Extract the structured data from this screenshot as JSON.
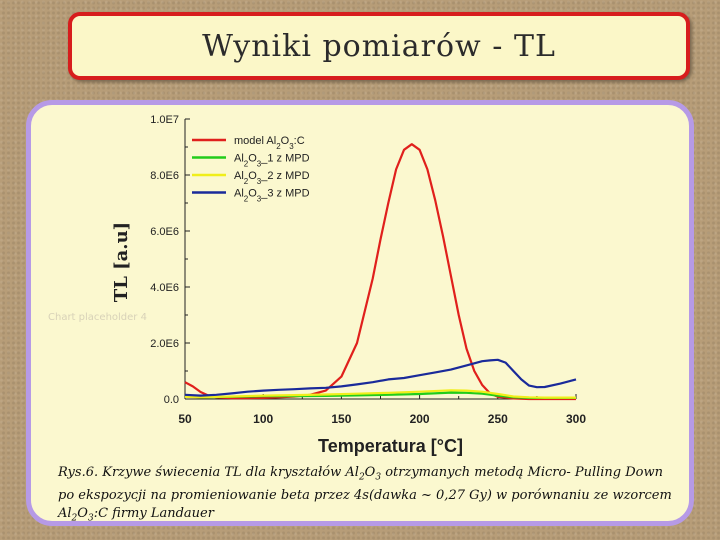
{
  "slide": {
    "title": "Wyniki pomiarów - TL",
    "ghost_text": "Chart placeholder 4",
    "caption": {
      "p1": "Rys.6. Krzywe świecenia TL dla kryształów Al",
      "s1": "2",
      "p2": "O",
      "s2": "3",
      "p3": " otrzymanych metodą Micro- Pulling Down po ekspozycji na promieniowanie beta przez 4s(dawka ~ 0,27 Gy) w porównaniu ze wzorcem Al",
      "s3": "2",
      "p4": "O",
      "s4": "3",
      "p5": ":C firmy Landauer"
    }
  },
  "chart_data": {
    "type": "line",
    "xlabel": "Temperatura [°C]",
    "ylabel": "TL [a.u]",
    "xlim": [
      50,
      300
    ],
    "ylim": [
      0,
      10000000
    ],
    "xticks": [
      50,
      100,
      150,
      200,
      250,
      300
    ],
    "yticks": [
      0,
      2000000,
      4000000,
      6000000,
      8000000,
      10000000
    ],
    "ytick_labels": [
      "0.0",
      "2.0E6",
      "4.0E6",
      "6.0E6",
      "8.0E6",
      "1.0E7"
    ],
    "grid": false,
    "legend_position": "top-left",
    "series": [
      {
        "legend": {
          "a": "model Al",
          "b": "2",
          "c": "O",
          "d": "3",
          "e": ":C"
        },
        "color": "#e0201c",
        "x": [
          50,
          55,
          60,
          65,
          70,
          80,
          90,
          100,
          110,
          120,
          130,
          140,
          150,
          160,
          170,
          175,
          180,
          185,
          190,
          195,
          200,
          205,
          210,
          215,
          220,
          225,
          230,
          235,
          240,
          245,
          250,
          260,
          270,
          280,
          290,
          300
        ],
        "y": [
          600000,
          450000,
          250000,
          120000,
          60000,
          30000,
          30000,
          40000,
          60000,
          90000,
          150000,
          300000,
          800000,
          2000000,
          4300000,
          5700000,
          7000000,
          8200000,
          8900000,
          9100000,
          8900000,
          8200000,
          7100000,
          5800000,
          4400000,
          3000000,
          1800000,
          1000000,
          500000,
          200000,
          80000,
          20000,
          0,
          0,
          0,
          0
        ]
      },
      {
        "legend": {
          "a": "Al",
          "b": "2",
          "c": "O",
          "d": "3",
          "e": "_1 z MPD"
        },
        "color": "#22cc1a",
        "x": [
          50,
          60,
          80,
          100,
          120,
          140,
          160,
          180,
          200,
          220,
          230,
          240,
          250,
          260,
          270,
          280,
          290,
          300
        ],
        "y": [
          100000,
          60000,
          80000,
          100000,
          100000,
          110000,
          130000,
          150000,
          180000,
          230000,
          220000,
          190000,
          120000,
          60000,
          40000,
          40000,
          40000,
          40000
        ]
      },
      {
        "legend": {
          "a": "Al",
          "b": "2",
          "c": "O",
          "d": "3",
          "e": "_2 z MPD"
        },
        "color": "#f0ee1a",
        "x": [
          50,
          60,
          80,
          100,
          120,
          140,
          160,
          180,
          200,
          220,
          230,
          240,
          250,
          260,
          270,
          280,
          290,
          300
        ],
        "y": [
          80000,
          60000,
          90000,
          120000,
          140000,
          160000,
          190000,
          220000,
          260000,
          310000,
          300000,
          260000,
          180000,
          90000,
          60000,
          50000,
          50000,
          50000
        ]
      },
      {
        "legend": {
          "a": "Al",
          "b": "2",
          "c": "O",
          "d": "3",
          "e": "_3 z MPD"
        },
        "color": "#1a2a9a",
        "x": [
          50,
          60,
          70,
          80,
          90,
          100,
          110,
          120,
          130,
          140,
          150,
          160,
          170,
          180,
          190,
          200,
          210,
          220,
          230,
          240,
          245,
          250,
          255,
          260,
          265,
          270,
          275,
          280,
          290,
          300
        ],
        "y": [
          150000,
          120000,
          150000,
          200000,
          260000,
          300000,
          330000,
          350000,
          380000,
          400000,
          450000,
          520000,
          600000,
          700000,
          750000,
          850000,
          950000,
          1050000,
          1200000,
          1350000,
          1380000,
          1400000,
          1300000,
          1000000,
          700000,
          480000,
          420000,
          430000,
          550000,
          700000
        ]
      }
    ]
  }
}
